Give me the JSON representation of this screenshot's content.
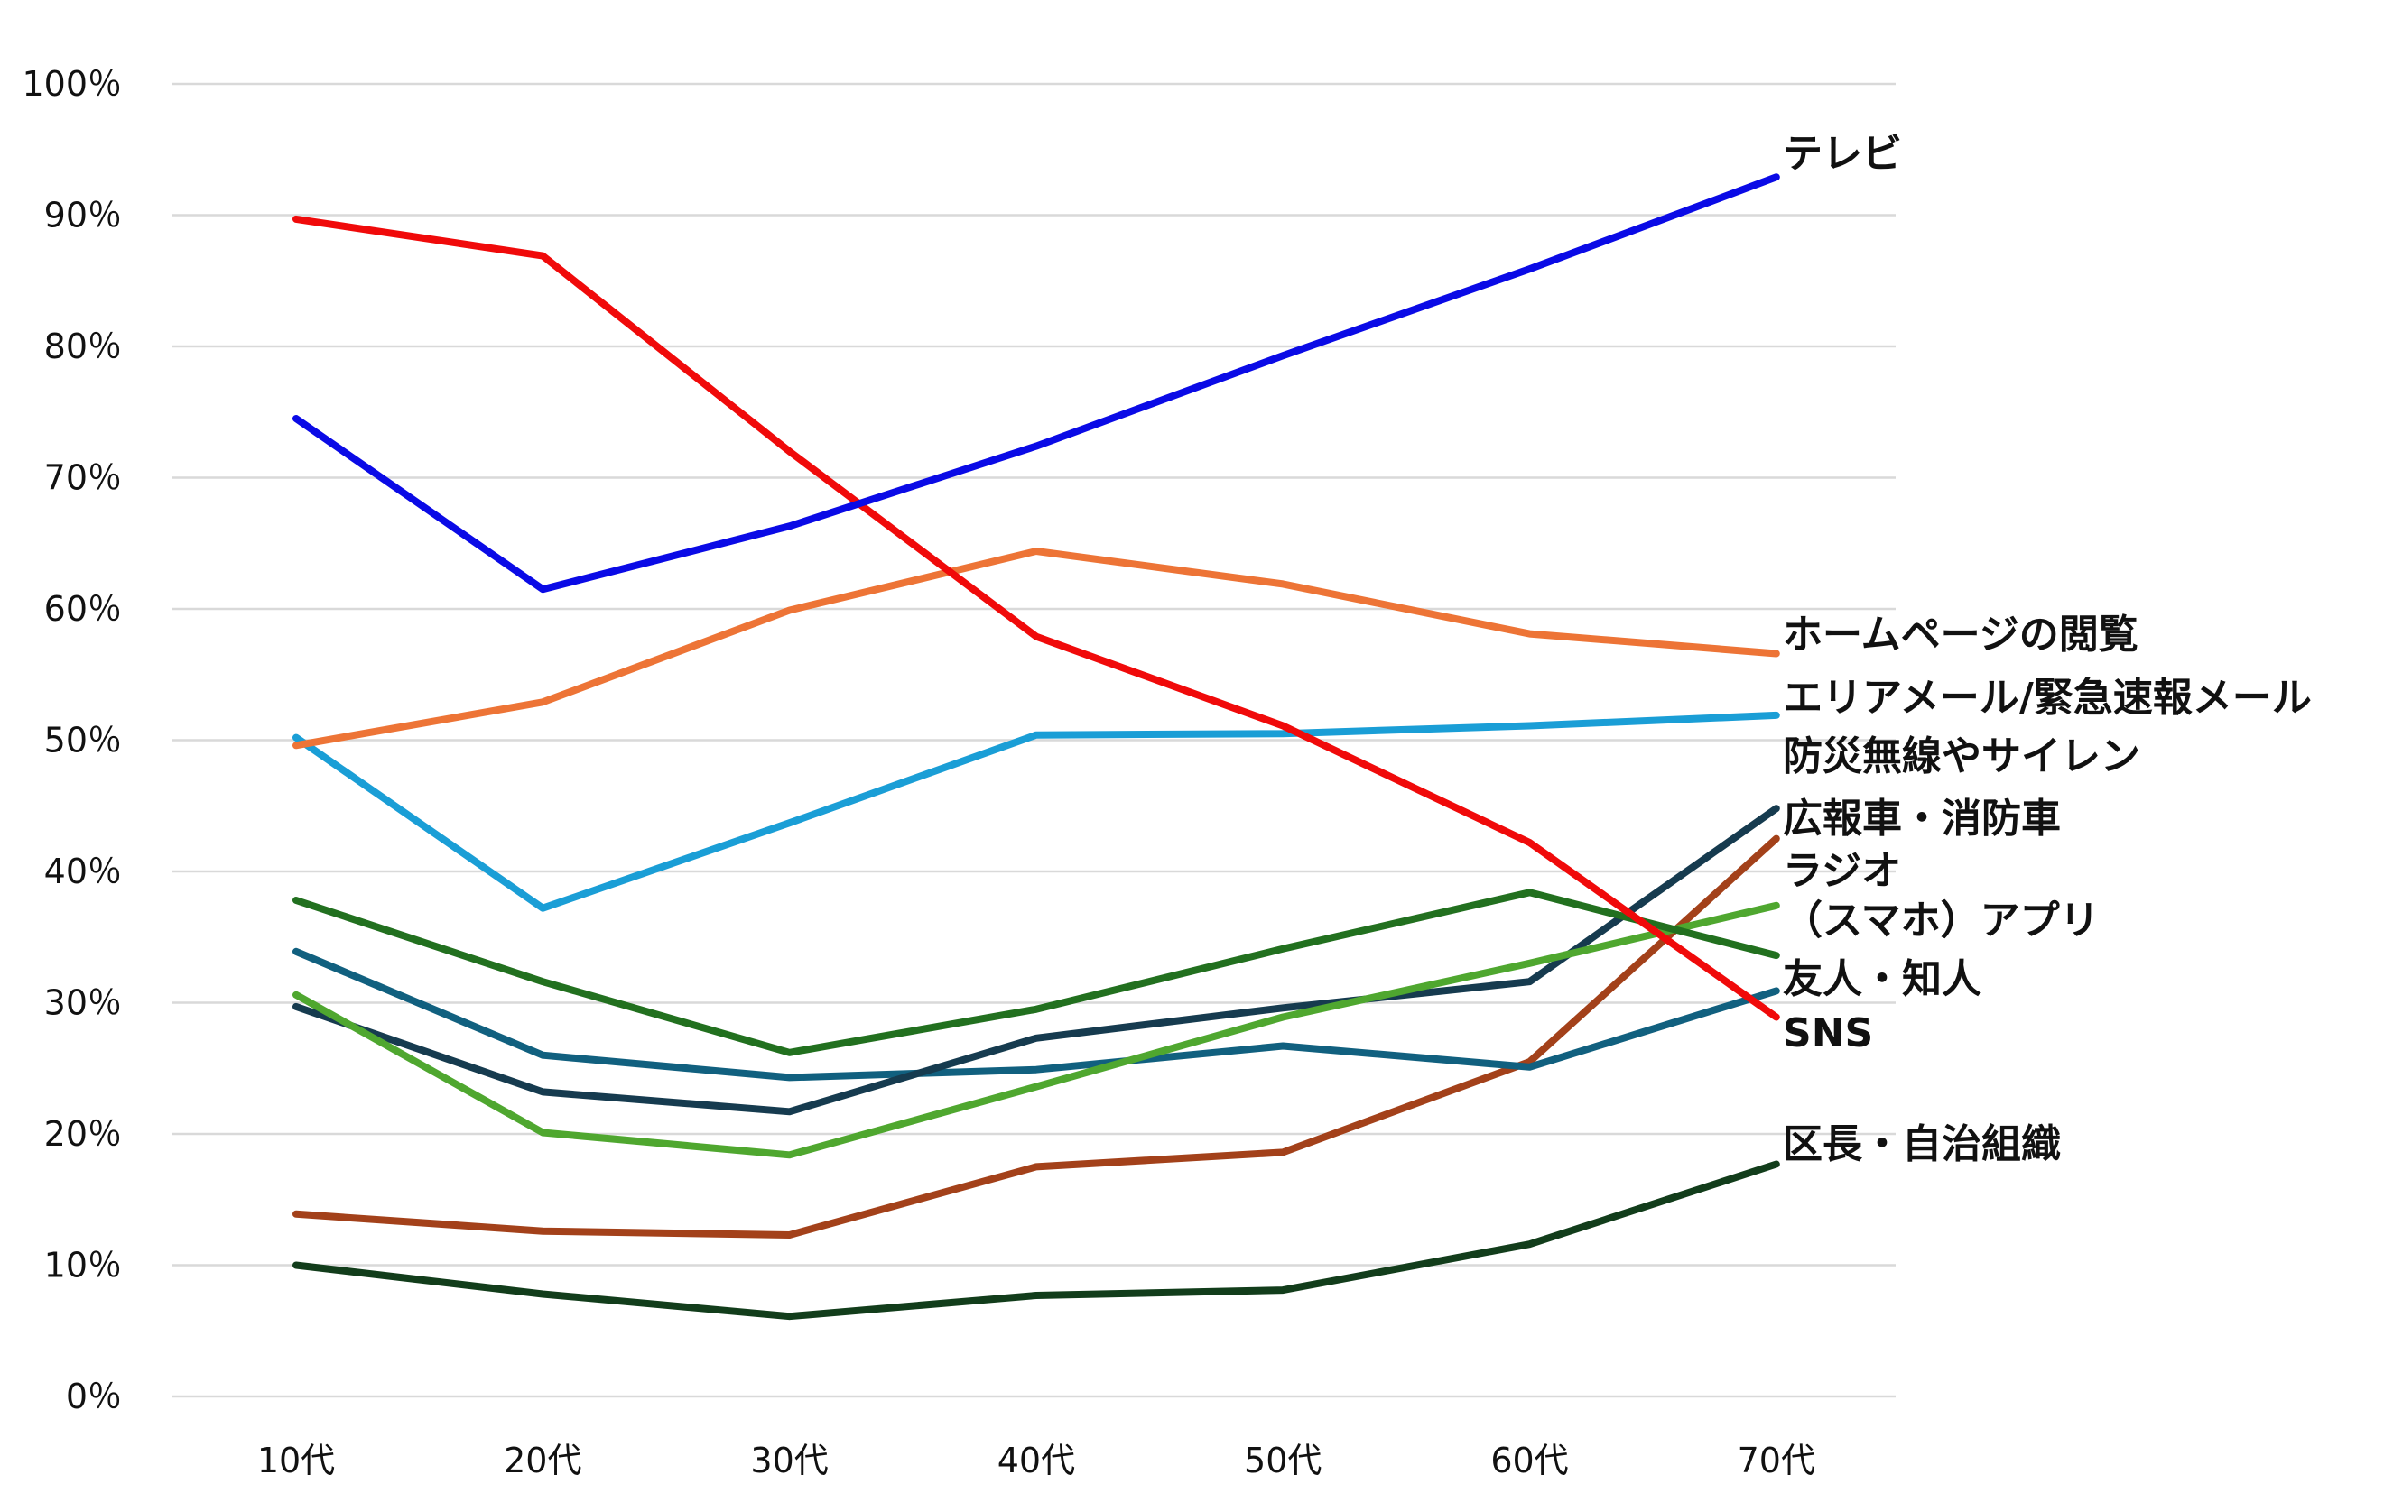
{
  "chart_data": {
    "type": "line",
    "categories": [
      "10代",
      "20代",
      "30代",
      "40代",
      "50代",
      "60代",
      "70代"
    ],
    "y_ticks": [
      "0％",
      "10％",
      "20％",
      "30％",
      "40％",
      "50％",
      "60％",
      "70％",
      "80％",
      "90％",
      "100％"
    ],
    "ylim": [
      0,
      100
    ],
    "grid": true,
    "title": "",
    "xlabel": "",
    "ylabel": "",
    "legend": "end-of-line labels",
    "series": [
      {
        "name": "テレビ",
        "color": "#0a0ae6",
        "values": [
          74.5,
          61.5,
          66.3,
          72.4,
          79.3,
          85.9,
          92.9
        ]
      },
      {
        "name": "ホームページの閲覧",
        "color": "#ed7436",
        "values": [
          49.6,
          52.9,
          59.9,
          64.4,
          61.9,
          58.1,
          56.6
        ]
      },
      {
        "name": "エリアメール/緊急速報メール",
        "color": "#1a9ed6",
        "values": [
          50.2,
          37.2,
          43.7,
          50.4,
          50.5,
          51.1,
          51.9
        ]
      },
      {
        "name": "防災無線やサイレン",
        "color": "#163b4f",
        "values": [
          29.7,
          23.2,
          21.7,
          27.3,
          29.6,
          31.6,
          44.8
        ]
      },
      {
        "name": "広報車・消防車",
        "color": "#a3411a",
        "values": [
          13.9,
          12.6,
          12.3,
          17.5,
          18.6,
          25.5,
          42.5
        ]
      },
      {
        "name": "ラジオ",
        "color": "#4fa72f",
        "values": [
          30.6,
          20.1,
          18.4,
          23.6,
          28.9,
          33.0,
          37.4
        ]
      },
      {
        "name": "（スマホ）アプリ",
        "color": "#22701f",
        "values": [
          37.8,
          31.6,
          26.2,
          29.5,
          34.1,
          38.4,
          33.6
        ]
      },
      {
        "name": "友人・知人",
        "color": "#11607f",
        "values": [
          33.9,
          26.0,
          24.3,
          24.9,
          26.7,
          25.1,
          30.9
        ]
      },
      {
        "name": "SNS",
        "color": "#f00a0a",
        "values": [
          89.7,
          86.9,
          72.0,
          57.9,
          51.1,
          42.2,
          28.9
        ]
      },
      {
        "name": "区長・自治組織",
        "color": "#123d1b",
        "values": [
          10.0,
          7.8,
          6.1,
          7.7,
          8.1,
          11.6,
          17.7
        ]
      }
    ]
  }
}
